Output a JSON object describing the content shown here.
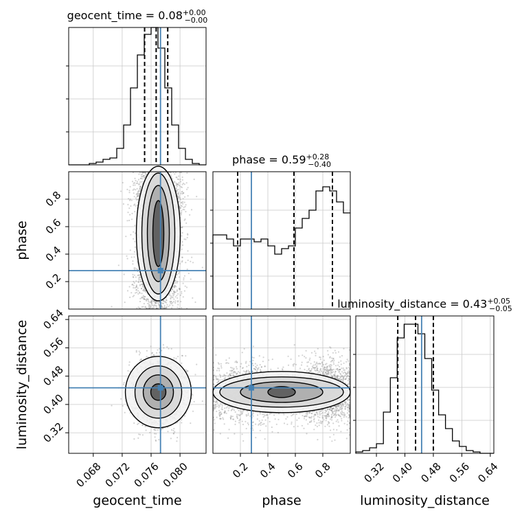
{
  "chart_data": {
    "type": "corner",
    "colors": {
      "truth": "#4682b4",
      "hist": "#000000",
      "grid": "#c8c8c8",
      "samples": "#808080"
    },
    "parameters": [
      {
        "name": "geocent_time",
        "label": "geocent_time",
        "range": [
          0.0646,
          0.0836
        ],
        "ticks": [
          0.068,
          0.072,
          0.076,
          0.08
        ],
        "tick_labels": [
          "0.068",
          "0.072",
          "0.076",
          "0.080"
        ],
        "truth": 0.0773,
        "quantiles": [
          0.0751,
          0.0767,
          0.0783
        ],
        "title": {
          "text": "geocent_time = 0.08",
          "plus": "+0.00",
          "minus": "−0.00"
        },
        "hist_edges_from": 0.0646,
        "hist_bin_width": 0.00095,
        "hist": [
          0.0,
          0.0,
          0.0,
          0.01,
          0.02,
          0.04,
          0.05,
          0.12,
          0.29,
          0.56,
          0.8,
          0.95,
          1.0,
          0.85,
          0.56,
          0.29,
          0.12,
          0.04,
          0.01,
          0.0
        ]
      },
      {
        "name": "phase",
        "label": "phase",
        "range": [
          0.0,
          1.0
        ],
        "ticks": [
          0.2,
          0.4,
          0.6,
          0.8
        ],
        "tick_labels": [
          "0.2",
          "0.4",
          "0.6",
          "0.8"
        ],
        "truth": 0.28,
        "quantiles": [
          0.18,
          0.59,
          0.87
        ],
        "title": {
          "text": "phase = 0.59",
          "plus": "+0.28",
          "minus": "−0.40"
        },
        "hist_edges_from": 0.0,
        "hist_bin_width": 0.05,
        "hist": [
          0.54,
          0.54,
          0.51,
          0.46,
          0.51,
          0.51,
          0.49,
          0.51,
          0.46,
          0.4,
          0.44,
          0.46,
          0.59,
          0.66,
          0.72,
          0.86,
          0.89,
          0.86,
          0.78,
          0.7
        ]
      },
      {
        "name": "luminosity_distance",
        "label": "luminosity_distance",
        "range": [
          0.262,
          0.65
        ],
        "ticks": [
          0.32,
          0.4,
          0.48,
          0.56,
          0.64
        ],
        "tick_labels": [
          "0.32",
          "0.40",
          "0.48",
          "0.56",
          "0.64"
        ],
        "truth": 0.447,
        "quantiles": [
          0.38,
          0.43,
          0.48
        ],
        "title": {
          "text": "luminosity_distance = 0.43",
          "plus": "+0.05",
          "minus": "−0.05"
        },
        "hist_edges_from": 0.262,
        "hist_bin_width": 0.0194,
        "hist": [
          0.01,
          0.02,
          0.04,
          0.07,
          0.3,
          0.55,
          0.84,
          0.94,
          0.94,
          0.87,
          0.69,
          0.46,
          0.28,
          0.18,
          0.09,
          0.05,
          0.02,
          0.01,
          0.0,
          0.0
        ]
      }
    ],
    "grid": true
  }
}
